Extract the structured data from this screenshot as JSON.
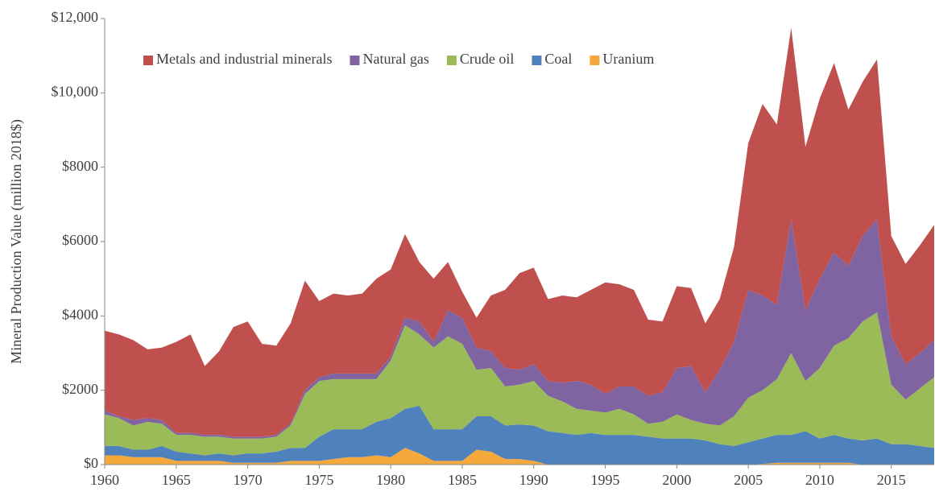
{
  "chart_data": {
    "type": "stacked-area",
    "y_label": "Mineral Production Value (million 2018$)",
    "x": [
      1960,
      1961,
      1962,
      1963,
      1964,
      1965,
      1966,
      1967,
      1968,
      1969,
      1970,
      1971,
      1972,
      1973,
      1974,
      1975,
      1976,
      1977,
      1978,
      1979,
      1980,
      1981,
      1982,
      1983,
      1984,
      1985,
      1986,
      1987,
      1988,
      1989,
      1990,
      1991,
      1992,
      1993,
      1994,
      1995,
      1996,
      1997,
      1998,
      1999,
      2000,
      2001,
      2002,
      2003,
      2004,
      2005,
      2006,
      2007,
      2008,
      2009,
      2010,
      2011,
      2012,
      2013,
      2014,
      2015,
      2016,
      2017,
      2018
    ],
    "xlim": [
      1960,
      2018
    ],
    "xticks": [
      1960,
      1965,
      1970,
      1975,
      1980,
      1985,
      1990,
      1995,
      2000,
      2005,
      2010,
      2015
    ],
    "ylim": [
      0,
      12000
    ],
    "yticks": [
      {
        "value": 0,
        "label": "$0"
      },
      {
        "value": 2000,
        "label": "$2000"
      },
      {
        "value": 4000,
        "label": "$4000"
      },
      {
        "value": 6000,
        "label": "$6000"
      },
      {
        "value": 8000,
        "label": "$8000"
      },
      {
        "value": 10000,
        "label": "$10,000"
      },
      {
        "value": 12000,
        "label": "$12,000"
      }
    ],
    "legend": "top-left",
    "series": [
      {
        "name": "Uranium",
        "color": "#f5a93c",
        "values": [
          250,
          250,
          200,
          200,
          200,
          100,
          100,
          100,
          100,
          50,
          50,
          50,
          50,
          100,
          100,
          100,
          150,
          200,
          200,
          250,
          200,
          450,
          300,
          100,
          100,
          100,
          400,
          350,
          150,
          150,
          100,
          0,
          0,
          0,
          0,
          0,
          0,
          0,
          0,
          0,
          0,
          0,
          0,
          0,
          0,
          0,
          20,
          50,
          50,
          50,
          50,
          50,
          50,
          0,
          0,
          0,
          0,
          0,
          0
        ]
      },
      {
        "name": "Coal",
        "color": "#4f81bd",
        "values": [
          250,
          250,
          200,
          200,
          300,
          250,
          200,
          150,
          200,
          200,
          250,
          250,
          300,
          350,
          350,
          650,
          800,
          750,
          750,
          900,
          1050,
          1050,
          1280,
          850,
          850,
          850,
          900,
          950,
          900,
          930,
          950,
          900,
          850,
          800,
          850,
          800,
          800,
          800,
          750,
          700,
          700,
          700,
          650,
          550,
          500,
          600,
          680,
          750,
          750,
          850,
          650,
          750,
          650,
          650,
          700,
          550,
          550,
          500,
          450
        ]
      },
      {
        "name": "Crude oil",
        "color": "#9bbb59",
        "values": [
          850,
          750,
          650,
          750,
          600,
          450,
          500,
          500,
          450,
          450,
          400,
          400,
          400,
          600,
          1450,
          1500,
          1350,
          1350,
          1350,
          1150,
          1550,
          2250,
          1920,
          2200,
          2500,
          2300,
          1250,
          1300,
          1050,
          1070,
          1200,
          950,
          850,
          700,
          600,
          600,
          700,
          550,
          350,
          450,
          650,
          500,
          450,
          500,
          800,
          1200,
          1300,
          1500,
          2200,
          1350,
          1900,
          2400,
          2700,
          3200,
          3400,
          1600,
          1200,
          1550,
          1900
        ]
      },
      {
        "name": "Natural gas",
        "color": "#8064a2",
        "values": [
          100,
          50,
          150,
          100,
          100,
          50,
          50,
          50,
          50,
          50,
          50,
          50,
          50,
          50,
          100,
          100,
          150,
          150,
          150,
          150,
          100,
          200,
          350,
          150,
          700,
          700,
          600,
          450,
          500,
          400,
          450,
          400,
          500,
          750,
          700,
          500,
          600,
          750,
          750,
          800,
          1250,
          1450,
          850,
          1500,
          2000,
          2900,
          2550,
          2000,
          3600,
          1900,
          2400,
          2500,
          1950,
          2300,
          2500,
          1300,
          950,
          950,
          1000
        ]
      },
      {
        "name": "Metals and industrial minerals",
        "color": "#c0504d",
        "values": [
          2150,
          2200,
          2150,
          1850,
          1950,
          2450,
          2650,
          1850,
          2250,
          2950,
          3100,
          2500,
          2400,
          2700,
          2950,
          2050,
          2150,
          2100,
          2150,
          2550,
          2350,
          2250,
          1600,
          1700,
          1300,
          700,
          800,
          1500,
          2100,
          2600,
          2600,
          2200,
          2350,
          2250,
          2550,
          3000,
          2750,
          2600,
          2050,
          1900,
          2200,
          2100,
          1850,
          1900,
          2550,
          3950,
          5150,
          4850,
          5150,
          4400,
          4850,
          5100,
          4200,
          4150,
          4300,
          2700,
          2700,
          2900,
          3100
        ]
      }
    ]
  }
}
